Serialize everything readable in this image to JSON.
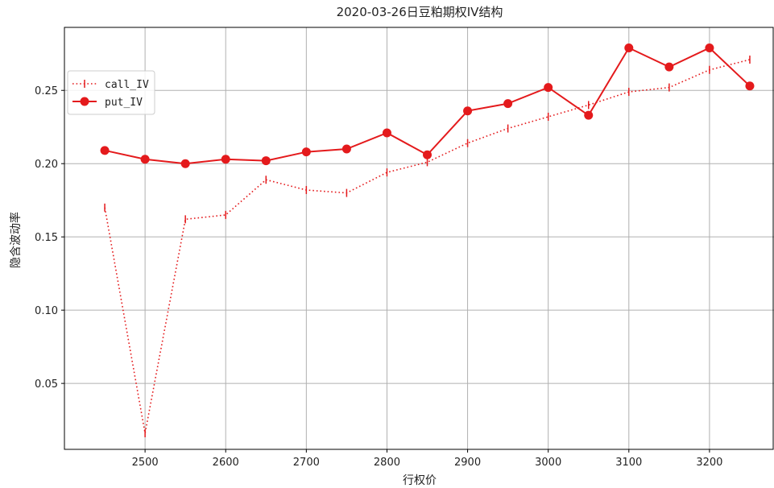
{
  "chart_data": {
    "type": "line",
    "title": "2020-03-26日豆粕期权IV结构",
    "xlabel": "行权价",
    "ylabel": "隐含波动率",
    "x": [
      2450,
      2500,
      2550,
      2600,
      2650,
      2700,
      2750,
      2800,
      2850,
      2900,
      2950,
      3000,
      3050,
      3100,
      3150,
      3200,
      3250
    ],
    "xlim": [
      2400,
      3280
    ],
    "ylim": [
      0.005,
      0.293
    ],
    "xticks": [
      "2500",
      "2600",
      "2700",
      "2800",
      "2900",
      "3000",
      "3100",
      "3200"
    ],
    "yticks": [
      "0.05",
      "0.10",
      "0.15",
      "0.20",
      "0.25"
    ],
    "grid": true,
    "legend_position": "upper-left",
    "series": [
      {
        "name": "call_IV",
        "style": "dotted",
        "marker": "vertical-tick",
        "color": "#e41a1c",
        "values": [
          0.17,
          0.016,
          0.162,
          0.165,
          0.189,
          0.182,
          0.18,
          0.194,
          0.201,
          0.214,
          0.224,
          0.232,
          0.24,
          0.249,
          0.252,
          0.264,
          0.271
        ]
      },
      {
        "name": "put_IV",
        "style": "solid",
        "marker": "circle",
        "color": "#e41a1c",
        "values": [
          0.209,
          0.203,
          0.2,
          0.203,
          0.202,
          0.208,
          0.21,
          0.221,
          0.206,
          0.236,
          0.241,
          0.252,
          0.233,
          0.279,
          0.266,
          0.279,
          0.253
        ]
      }
    ]
  }
}
